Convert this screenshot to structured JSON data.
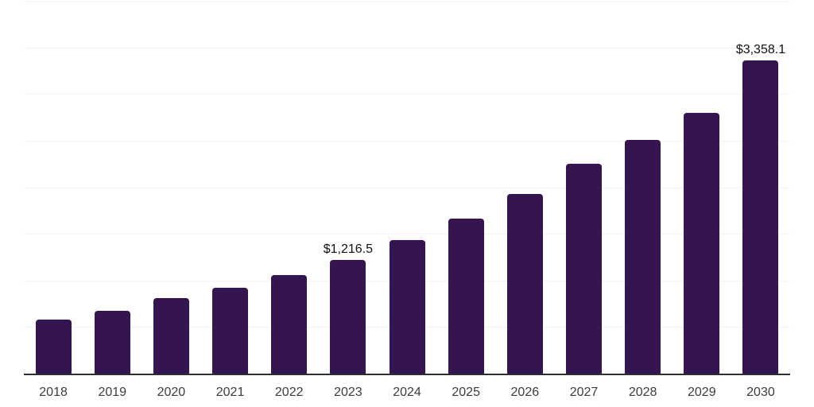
{
  "chart_data": {
    "type": "bar",
    "title": "",
    "xlabel": "",
    "ylabel": "",
    "categories": [
      "2018",
      "2019",
      "2020",
      "2021",
      "2022",
      "2023",
      "2024",
      "2025",
      "2026",
      "2027",
      "2028",
      "2029",
      "2030"
    ],
    "values": [
      580,
      670,
      810,
      920,
      1055,
      1216.5,
      1430,
      1660,
      1930,
      2250,
      2505,
      2795,
      3358.1
    ],
    "data_labels": {
      "2023": "$1,216.5",
      "2030": "$3,358.1"
    },
    "ylim": [
      0,
      4000
    ],
    "gridline_step": 500,
    "grid": "on",
    "legend": "none",
    "colors": {
      "bar": "#341550",
      "gridline": "#f0f0f0",
      "axis_line": "#2e2e2e",
      "tick_label": "#3c3c3c",
      "data_label": "#111111",
      "background": "#ffffff"
    }
  }
}
